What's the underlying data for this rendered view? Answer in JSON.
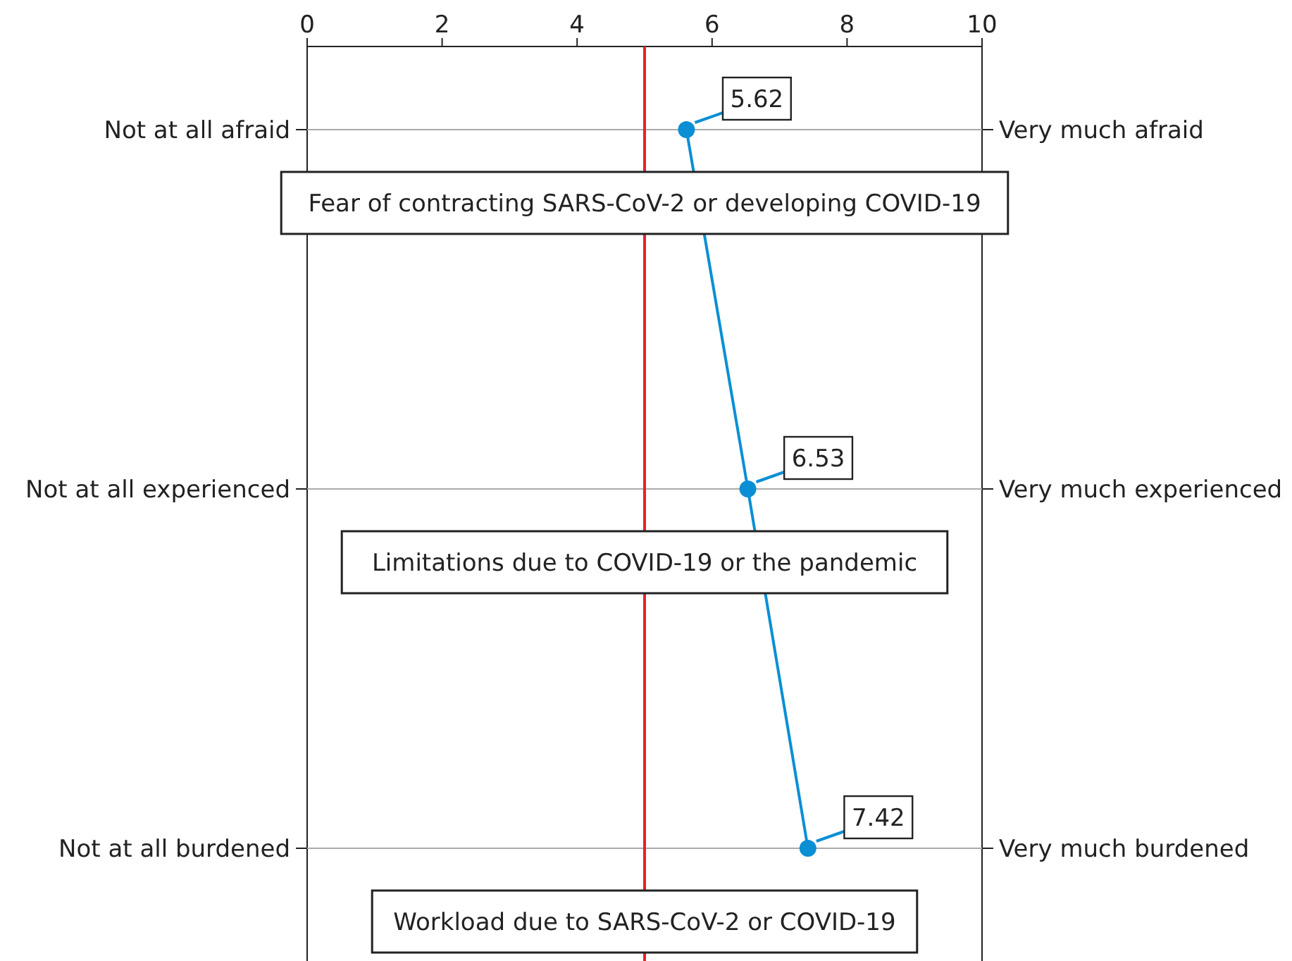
{
  "chart_data": {
    "type": "line",
    "orientation": "horizontal",
    "categories": [
      "Not at all afraid",
      "Not at all experienced",
      "Not at all burdened"
    ],
    "y2_categories": [
      "Very much afraid",
      "Very much experienced",
      "Very much burdened"
    ],
    "series": [
      {
        "color": "#0a8fd4",
        "values": [
          5.62,
          6.53,
          7.42
        ]
      }
    ],
    "xlim": [
      0,
      10
    ],
    "xticks": [
      0,
      2,
      4,
      6,
      8,
      10
    ],
    "ref_lines": [
      {
        "axis": "x",
        "value": 5,
        "color": "#e8202a"
      }
    ],
    "annotations": [
      "Fear of contracting SARS-CoV-2 or developing COVID-19",
      "Limitations due to COVID-19 or the pandemic",
      "Workload due to SARS-CoV-2 or COVID-19"
    ],
    "data_labels": true,
    "grid": "y",
    "marker": "circle",
    "line_style": "solid"
  }
}
